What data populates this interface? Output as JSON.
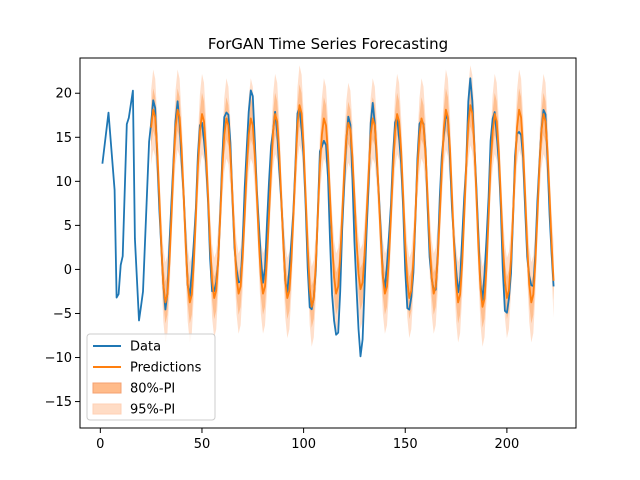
{
  "chart_data": {
    "type": "line",
    "title": "ForGAN Time Series Forecasting",
    "xlabel": "",
    "ylabel": "",
    "xlim": [
      -10,
      234
    ],
    "ylim": [
      -18,
      24
    ],
    "xticks": [
      0,
      50,
      100,
      150,
      200
    ],
    "yticks": [
      -15,
      -10,
      -5,
      0,
      5,
      10,
      15,
      20
    ],
    "grid": false,
    "legend_position": "bottom-left",
    "colors": {
      "data": "#1f77b4",
      "predictions": "#ff7f0e",
      "pi80": "#ffbb8a",
      "pi95": "#ffdcc5"
    },
    "legend": [
      {
        "label": "Data",
        "kind": "line",
        "series": "data"
      },
      {
        "label": "Predictions",
        "kind": "line",
        "series": "predictions"
      },
      {
        "label": "80%-PI",
        "kind": "patch",
        "series": "pi80"
      },
      {
        "label": "95%-PI",
        "kind": "patch",
        "series": "pi95"
      }
    ],
    "series": [
      {
        "name": "Data",
        "key": "data",
        "x": [
          1,
          4,
          7,
          8,
          9,
          10,
          11,
          13,
          14,
          16,
          17,
          19,
          20,
          21,
          24
        ],
        "y": [
          12.0,
          17.8,
          9.0,
          -3.2,
          -2.8,
          0.5,
          1.5,
          16.5,
          17.2,
          20.3,
          3.5,
          -5.8,
          -4.2,
          -2.5,
          14.5
        ]
      },
      {
        "name": "Predictions",
        "key": "predictions",
        "x_start": 25,
        "step": 1,
        "period": 12,
        "amplitudes": [
          11,
          11,
          10.5,
          10,
          10,
          10.5,
          11.5,
          10,
          9.5,
          10,
          10.5,
          10,
          11,
          11.5,
          10.5,
          11,
          10.5,
          10.5
        ],
        "mean": 7.2
      },
      {
        "name": "80%-PI",
        "key": "pi80",
        "halfwidth": 2.0
      },
      {
        "name": "95%-PI",
        "key": "pi95",
        "halfwidth": 3.8
      }
    ],
    "overlay_data": {
      "key": "data",
      "x_start": 25,
      "x_end": 223,
      "peaks": [
        19.0,
        18.2,
        16.8,
        18.7,
        20.2,
        17.0,
        18.4,
        15.5,
        17.3,
        18.0,
        17.3,
        17.8,
        17.5,
        20.8,
        17.8,
        16.5,
        18.2,
        22.2
      ],
      "troughs": [
        -3.8,
        -2.5,
        -3.2,
        -2.0,
        -0.8,
        -2.0,
        -5.2,
        -8.0,
        -9.2,
        -1.5,
        -5.2,
        -3.0,
        -2.0,
        -2.8,
        -5.5,
        -2.5,
        -4.2,
        -2.0
      ]
    }
  }
}
